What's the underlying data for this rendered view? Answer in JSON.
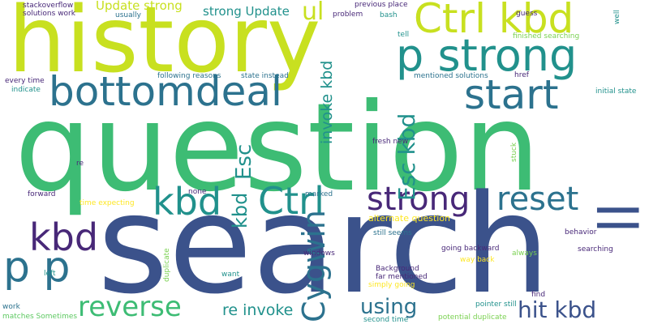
{
  "palette": {
    "lime": "#c8e020",
    "green": "#3dbc74",
    "teal": "#21918c",
    "blue": "#3b528b",
    "dteal": "#2c728e",
    "purple": "#482878",
    "yellow": "#fde725",
    "lgreen": "#7ad151",
    "dark": "#440154",
    "bgreen": "#5ec962",
    "cyan": "#1fa187"
  },
  "words": [
    "question",
    "search",
    "history",
    "Ctrl kbd",
    "p strong",
    "bottomdeal",
    "start",
    "ll",
    "kbd",
    "Ctrl",
    "strong",
    "reset",
    "kbd",
    "p p",
    "reverse",
    "hit kbd",
    "using",
    "Cygwin",
    "re invoke",
    "strong Update",
    "Update strong",
    "ul",
    "Esc kbd",
    "invoke kbd",
    "Esc",
    "kbd",
    "alternate question",
    "stackoverflow",
    "solutions work",
    "usually",
    "problem",
    "bash",
    "previous place",
    "guess",
    "tell",
    "finished searching",
    "well",
    "every time",
    "indicate",
    "following reasons",
    "state instead",
    "mentioned solutions",
    "href",
    "initial state",
    "fresh new",
    "stuck",
    "re",
    "none",
    "forward",
    "time expecting",
    "marked",
    "still seems",
    "behavior",
    "going backward",
    "Background",
    "far mentioned",
    "windows",
    "way back",
    "always",
    "searching",
    "left",
    "duplicate",
    "want",
    "simply going",
    "find",
    "pointer still",
    "work",
    "matches Sometimes",
    "second time",
    "potential duplicate"
  ]
}
